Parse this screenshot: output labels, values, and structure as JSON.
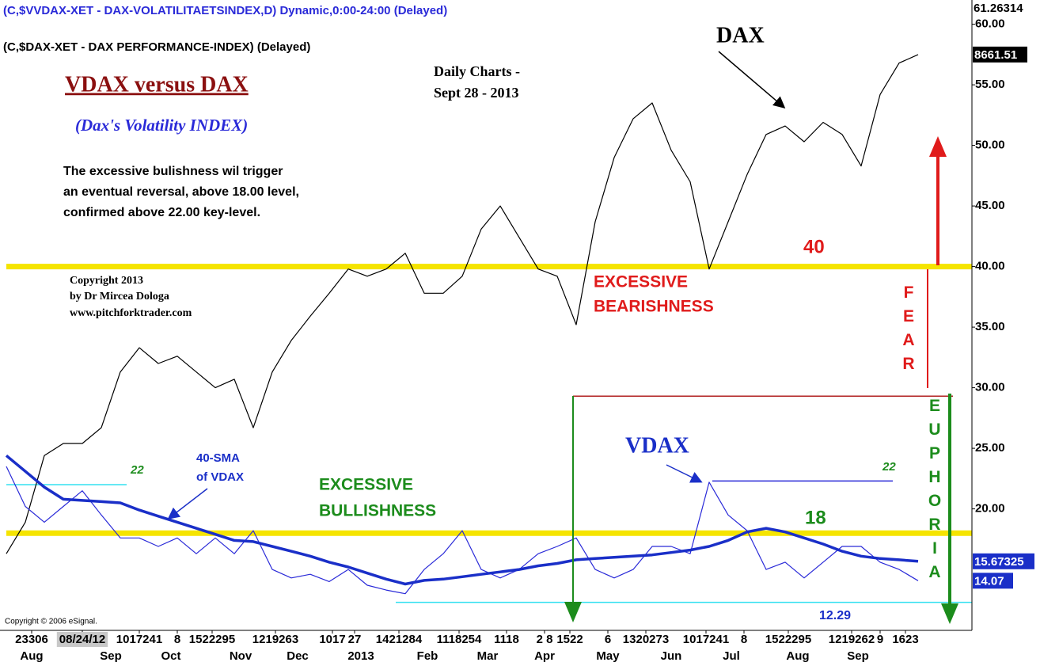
{
  "chart_data": {
    "type": "line",
    "source_lines": [
      "(C,$VVDAX-XET - DAX-VOLATILITAETSINDEX,D) Dynamic,0:00-24:00 (Delayed)",
      "(C,$DAX-XET - DAX PERFORMANCE-INDEX)  (Delayed)"
    ],
    "title": "VDAX versus DAX",
    "subtitle": "(Dax's Volatility INDEX)",
    "comment": [
      "The excessive bulishness wil trigger",
      "an eventual reversal, above 18.00 level,",
      "confirmed above 22.00 key-level."
    ],
    "chart_note": [
      "Daily Charts -",
      "Sept 28 - 2013"
    ],
    "copyright": [
      "Copyright 2013",
      "by Dr Mircea Dologa",
      "www.pitchforktrader.com"
    ],
    "esignal": "Copyright © 2006 eSignal.",
    "annotations": {
      "dax": "DAX",
      "vdax": "VDAX",
      "level_40": "40",
      "level_18": "18",
      "level_22_left": "22",
      "level_22_right": "22",
      "level_low": "12.29",
      "bearish": [
        "EXCESSIVE",
        "BEARISHNESS"
      ],
      "bullish": [
        "EXCESSIVE",
        "BULLISHNESS"
      ],
      "sma_note": [
        "40-SMA",
        "of VDAX"
      ],
      "fear": "FEAR",
      "euphoria": "EUPHORIA"
    },
    "x": [
      0,
      6,
      12,
      18,
      24,
      30,
      36,
      42,
      48,
      54,
      60,
      66,
      72,
      78,
      84,
      90,
      96,
      102,
      108,
      114,
      120,
      126,
      132,
      138,
      144,
      150,
      156,
      162,
      168,
      174,
      180,
      186,
      192,
      198,
      204,
      210,
      216,
      222,
      228,
      234,
      240,
      246,
      252,
      258,
      264,
      270,
      276,
      282,
      288
    ],
    "series": [
      {
        "color": "#000000",
        "width": 1.2,
        "end_label": "8661.51",
        "values": [
          16.3,
          18.9,
          24.4,
          25.4,
          25.4,
          26.7,
          31.3,
          33.3,
          32.0,
          32.6,
          31.3,
          30.0,
          30.7,
          26.7,
          31.3,
          33.9,
          35.9,
          37.8,
          39.8,
          39.2,
          39.8,
          41.1,
          37.8,
          37.8,
          39.2,
          43.1,
          45.0,
          42.4,
          39.8,
          39.2,
          35.2,
          43.7,
          49.0,
          52.2,
          53.5,
          49.6,
          47.0,
          39.8,
          43.7,
          47.6,
          50.9,
          51.6,
          50.3,
          51.9,
          50.9,
          48.3,
          54.2,
          56.8,
          57.5
        ]
      },
      {
        "color": "#2a2ad8",
        "width": 1.2,
        "end_label": "14.07",
        "values": [
          23.5,
          20.2,
          18.9,
          20.2,
          21.5,
          19.5,
          17.6,
          17.6,
          16.9,
          17.6,
          16.3,
          17.6,
          16.3,
          18.2,
          15.0,
          14.3,
          14.6,
          14.0,
          15.0,
          13.7,
          13.3,
          13.0,
          15.0,
          16.3,
          18.2,
          15.0,
          14.3,
          15.0,
          16.3,
          16.9,
          17.6,
          15.0,
          14.3,
          15.0,
          16.9,
          16.9,
          16.3,
          22.2,
          19.5,
          18.2,
          15.0,
          15.6,
          14.3,
          15.6,
          16.9,
          16.9,
          15.6,
          15.0,
          14.07
        ]
      },
      {
        "color": "#1a2fc8",
        "width": 3.5,
        "end_label": "15.67325",
        "values": [
          24.4,
          23.1,
          21.8,
          20.8,
          20.7,
          20.6,
          20.5,
          19.9,
          19.4,
          18.9,
          18.4,
          17.9,
          17.4,
          17.3,
          16.9,
          16.5,
          16.1,
          15.6,
          15.2,
          14.7,
          14.2,
          13.8,
          14.1,
          14.2,
          14.4,
          14.6,
          14.8,
          15.0,
          15.3,
          15.5,
          15.8,
          15.9,
          16.0,
          16.1,
          16.2,
          16.4,
          16.6,
          16.9,
          17.4,
          18.1,
          18.4,
          18.1,
          17.6,
          17.1,
          16.5,
          16.1,
          15.9,
          15.8,
          15.67325
        ]
      }
    ],
    "hlines": [
      {
        "value": 40,
        "color": "#f5e400",
        "width": 7,
        "x0": 0,
        "x1": 305
      },
      {
        "value": 18,
        "color": "#f5e400",
        "width": 7,
        "x0": 0,
        "x1": 305
      },
      {
        "value": 22,
        "color": "#33e0f0",
        "width": 1.5,
        "x0": 0,
        "x1": 38
      },
      {
        "value": 12.29,
        "color": "#33e0f0",
        "width": 1.5,
        "x0": 123,
        "x1": 305
      },
      {
        "value": 29.3,
        "color": "#b22222",
        "width": 1.5,
        "x0": 179,
        "x1": 299
      },
      {
        "value": 22.3,
        "color": "#2a2ad8",
        "width": 1.5,
        "x0": 223,
        "x1": 280
      }
    ],
    "xlim": [
      0,
      305
    ],
    "ylim": [
      10,
      62
    ],
    "top_marker": 61.26314,
    "yticks": [
      {
        "value": 20,
        "label": "20.00"
      },
      {
        "value": 25,
        "label": "25.00"
      },
      {
        "value": 30,
        "label": "30.00"
      },
      {
        "value": 35,
        "label": "35.00"
      },
      {
        "value": 40,
        "label": "40.00"
      },
      {
        "value": 45,
        "label": "45.00"
      },
      {
        "value": 50,
        "label": "50.00"
      },
      {
        "value": 55,
        "label": "55.00"
      },
      {
        "value": 60,
        "label": "60.00"
      }
    ],
    "xticks": [
      {
        "value": 8,
        "label": "23306"
      },
      {
        "value": 24,
        "label": "08/24/12"
      },
      {
        "value": 42,
        "label": "1017241"
      },
      {
        "value": 54,
        "label": "8"
      },
      {
        "value": 65,
        "label": "1522295"
      },
      {
        "value": 85,
        "label": "1219263"
      },
      {
        "value": 103,
        "label": "1017"
      },
      {
        "value": 110,
        "label": "27"
      },
      {
        "value": 124,
        "label": "1421284"
      },
      {
        "value": 143,
        "label": "1118254"
      },
      {
        "value": 158,
        "label": "1118"
      },
      {
        "value": 170,
        "label": "2 8"
      },
      {
        "value": 178,
        "label": "1522"
      },
      {
        "value": 190,
        "label": "6"
      },
      {
        "value": 202,
        "label": "1320273"
      },
      {
        "value": 221,
        "label": "1017241"
      },
      {
        "value": 233,
        "label": "8"
      },
      {
        "value": 247,
        "label": "1522295"
      },
      {
        "value": 267,
        "label": "1219262"
      },
      {
        "value": 276,
        "label": "9"
      },
      {
        "value": 284,
        "label": "1623"
      }
    ],
    "month_ticks": [
      {
        "value": 8,
        "label": "Aug"
      },
      {
        "value": 33,
        "label": "Sep"
      },
      {
        "value": 52,
        "label": "Oct"
      },
      {
        "value": 74,
        "label": "Nov"
      },
      {
        "value": 92,
        "label": "Dec"
      },
      {
        "value": 112,
        "label": "2013"
      },
      {
        "value": 133,
        "label": "Feb"
      },
      {
        "value": 152,
        "label": "Mar"
      },
      {
        "value": 170,
        "label": "Apr"
      },
      {
        "value": 190,
        "label": "May"
      },
      {
        "value": 210,
        "label": "Jun"
      },
      {
        "value": 229,
        "label": "Jul"
      },
      {
        "value": 250,
        "label": "Aug"
      },
      {
        "value": 269,
        "label": "Sep"
      }
    ]
  }
}
